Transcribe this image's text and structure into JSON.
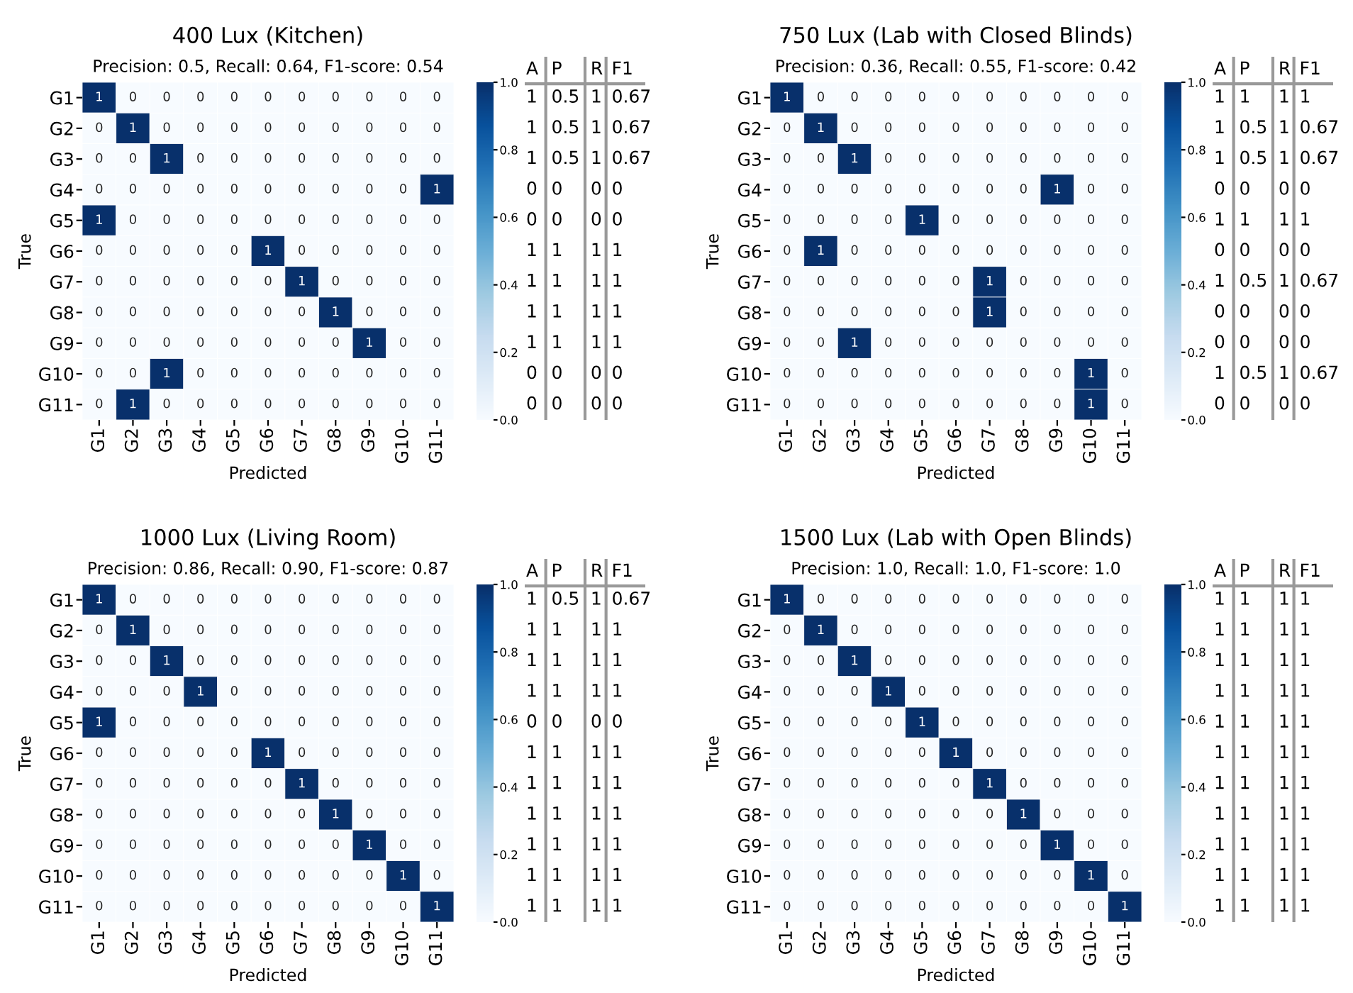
{
  "chart_data": [
    {
      "type": "heatmap",
      "title": "400 Lux (Kitchen)",
      "subtitle": "Precision: 0.5, Recall: 0.64, F1-score: 0.54",
      "xlabel": "Predicted",
      "ylabel": "True",
      "categories": [
        "G1",
        "G2",
        "G3",
        "G4",
        "G5",
        "G6",
        "G7",
        "G8",
        "G9",
        "G10",
        "G11"
      ],
      "y_categories": [
        "G1",
        "G2",
        "G3",
        "G4",
        "G5",
        "G6",
        "G7",
        "G8",
        "G9",
        "G10",
        "G11"
      ],
      "cells": [
        [
          1,
          0,
          0,
          0,
          0,
          0,
          0,
          0,
          0,
          0,
          0
        ],
        [
          0,
          1,
          0,
          0,
          0,
          0,
          0,
          0,
          0,
          0,
          0
        ],
        [
          0,
          0,
          1,
          0,
          0,
          0,
          0,
          0,
          0,
          0,
          0
        ],
        [
          0,
          0,
          0,
          0,
          0,
          0,
          0,
          0,
          0,
          0,
          1
        ],
        [
          1,
          0,
          0,
          0,
          0,
          0,
          0,
          0,
          0,
          0,
          0
        ],
        [
          0,
          0,
          0,
          0,
          0,
          1,
          0,
          0,
          0,
          0,
          0
        ],
        [
          0,
          0,
          0,
          0,
          0,
          0,
          1,
          0,
          0,
          0,
          0
        ],
        [
          0,
          0,
          0,
          0,
          0,
          0,
          0,
          1,
          0,
          0,
          0
        ],
        [
          0,
          0,
          0,
          0,
          0,
          0,
          0,
          0,
          1,
          0,
          0
        ],
        [
          0,
          0,
          1,
          0,
          0,
          0,
          0,
          0,
          0,
          0,
          0
        ],
        [
          0,
          1,
          0,
          0,
          0,
          0,
          0,
          0,
          0,
          0,
          0
        ]
      ],
      "clim": [
        0,
        1
      ],
      "cticks": [
        {
          "value": 0,
          "label": "0.0"
        },
        {
          "value": 0.2,
          "label": "0.2"
        },
        {
          "value": 0.4,
          "label": "0.4"
        },
        {
          "value": 0.6,
          "label": "0.6"
        },
        {
          "value": 0.8,
          "label": "0.8"
        },
        {
          "value": 1,
          "label": "1.0"
        }
      ],
      "data_labels": true
    },
    {
      "type": "other",
      "categories": [
        "A",
        "P",
        "R",
        "F1"
      ],
      "cell_labels": [
        [
          "1",
          "0.5",
          "1",
          "0.67"
        ],
        [
          "1",
          "0.5",
          "1",
          "0.67"
        ],
        [
          "1",
          "0.5",
          "1",
          "0.67"
        ],
        [
          "0",
          "0",
          "0",
          "0"
        ],
        [
          "0",
          "0",
          "0",
          "0"
        ],
        [
          "1",
          "1",
          "1",
          "1"
        ],
        [
          "1",
          "1",
          "1",
          "1"
        ],
        [
          "1",
          "1",
          "1",
          "1"
        ],
        [
          "1",
          "1",
          "1",
          "1"
        ],
        [
          "0",
          "0",
          "0",
          "0"
        ],
        [
          "0",
          "0",
          "0",
          "0"
        ]
      ]
    },
    {
      "type": "heatmap",
      "title": "750 Lux (Lab with Closed Blinds)",
      "subtitle": "Precision: 0.36, Recall: 0.55, F1-score: 0.42",
      "xlabel": "Predicted",
      "ylabel": "True",
      "categories": [
        "G1",
        "G2",
        "G3",
        "G4",
        "G5",
        "G6",
        "G7",
        "G8",
        "G9",
        "G10",
        "G11"
      ],
      "y_categories": [
        "G1",
        "G2",
        "G3",
        "G4",
        "G5",
        "G6",
        "G7",
        "G8",
        "G9",
        "G10",
        "G11"
      ],
      "cells": [
        [
          1,
          0,
          0,
          0,
          0,
          0,
          0,
          0,
          0,
          0,
          0
        ],
        [
          0,
          1,
          0,
          0,
          0,
          0,
          0,
          0,
          0,
          0,
          0
        ],
        [
          0,
          0,
          1,
          0,
          0,
          0,
          0,
          0,
          0,
          0,
          0
        ],
        [
          0,
          0,
          0,
          0,
          0,
          0,
          0,
          0,
          1,
          0,
          0
        ],
        [
          0,
          0,
          0,
          0,
          1,
          0,
          0,
          0,
          0,
          0,
          0
        ],
        [
          0,
          1,
          0,
          0,
          0,
          0,
          0,
          0,
          0,
          0,
          0
        ],
        [
          0,
          0,
          0,
          0,
          0,
          0,
          1,
          0,
          0,
          0,
          0
        ],
        [
          0,
          0,
          0,
          0,
          0,
          0,
          1,
          0,
          0,
          0,
          0
        ],
        [
          0,
          0,
          1,
          0,
          0,
          0,
          0,
          0,
          0,
          0,
          0
        ],
        [
          0,
          0,
          0,
          0,
          0,
          0,
          0,
          0,
          0,
          1,
          0
        ],
        [
          0,
          0,
          0,
          0,
          0,
          0,
          0,
          0,
          0,
          1,
          0
        ]
      ],
      "clim": [
        0,
        1
      ],
      "cticks": [
        {
          "value": 0,
          "label": "0.0"
        },
        {
          "value": 0.2,
          "label": "0.2"
        },
        {
          "value": 0.4,
          "label": "0.4"
        },
        {
          "value": 0.6,
          "label": "0.6"
        },
        {
          "value": 0.8,
          "label": "0.8"
        },
        {
          "value": 1,
          "label": "1.0"
        }
      ],
      "data_labels": true
    },
    {
      "type": "other",
      "categories": [
        "A",
        "P",
        "R",
        "F1"
      ],
      "cell_labels": [
        [
          "1",
          "1",
          "1",
          "1"
        ],
        [
          "1",
          "0.5",
          "1",
          "0.67"
        ],
        [
          "1",
          "0.5",
          "1",
          "0.67"
        ],
        [
          "0",
          "0",
          "0",
          "0"
        ],
        [
          "1",
          "1",
          "1",
          "1"
        ],
        [
          "0",
          "0",
          "0",
          "0"
        ],
        [
          "1",
          "0.5",
          "1",
          "0.67"
        ],
        [
          "0",
          "0",
          "0",
          "0"
        ],
        [
          "0",
          "0",
          "0",
          "0"
        ],
        [
          "1",
          "0.5",
          "1",
          "0.67"
        ],
        [
          "0",
          "0",
          "0",
          "0"
        ]
      ]
    },
    {
      "type": "heatmap",
      "title": "1000 Lux (Living Room)",
      "subtitle": "Precision: 0.86, Recall: 0.90, F1-score: 0.87",
      "xlabel": "Predicted",
      "ylabel": "True",
      "categories": [
        "G1",
        "G2",
        "G3",
        "G4",
        "G5",
        "G6",
        "G7",
        "G8",
        "G9",
        "G10",
        "G11"
      ],
      "y_categories": [
        "G1",
        "G2",
        "G3",
        "G4",
        "G5",
        "G6",
        "G7",
        "G8",
        "G9",
        "G10",
        "G11"
      ],
      "cells": [
        [
          1,
          0,
          0,
          0,
          0,
          0,
          0,
          0,
          0,
          0,
          0
        ],
        [
          0,
          1,
          0,
          0,
          0,
          0,
          0,
          0,
          0,
          0,
          0
        ],
        [
          0,
          0,
          1,
          0,
          0,
          0,
          0,
          0,
          0,
          0,
          0
        ],
        [
          0,
          0,
          0,
          1,
          0,
          0,
          0,
          0,
          0,
          0,
          0
        ],
        [
          1,
          0,
          0,
          0,
          0,
          0,
          0,
          0,
          0,
          0,
          0
        ],
        [
          0,
          0,
          0,
          0,
          0,
          1,
          0,
          0,
          0,
          0,
          0
        ],
        [
          0,
          0,
          0,
          0,
          0,
          0,
          1,
          0,
          0,
          0,
          0
        ],
        [
          0,
          0,
          0,
          0,
          0,
          0,
          0,
          1,
          0,
          0,
          0
        ],
        [
          0,
          0,
          0,
          0,
          0,
          0,
          0,
          0,
          1,
          0,
          0
        ],
        [
          0,
          0,
          0,
          0,
          0,
          0,
          0,
          0,
          0,
          1,
          0
        ],
        [
          0,
          0,
          0,
          0,
          0,
          0,
          0,
          0,
          0,
          0,
          1
        ]
      ],
      "clim": [
        0,
        1
      ],
      "cticks": [
        {
          "value": 0,
          "label": "0.0"
        },
        {
          "value": 0.2,
          "label": "0.2"
        },
        {
          "value": 0.4,
          "label": "0.4"
        },
        {
          "value": 0.6,
          "label": "0.6"
        },
        {
          "value": 0.8,
          "label": "0.8"
        },
        {
          "value": 1,
          "label": "1.0"
        }
      ],
      "data_labels": true
    },
    {
      "type": "other",
      "categories": [
        "A",
        "P",
        "R",
        "F1"
      ],
      "cell_labels": [
        [
          "1",
          "0.5",
          "1",
          "0.67"
        ],
        [
          "1",
          "1",
          "1",
          "1"
        ],
        [
          "1",
          "1",
          "1",
          "1"
        ],
        [
          "1",
          "1",
          "1",
          "1"
        ],
        [
          "0",
          "0",
          "0",
          "0"
        ],
        [
          "1",
          "1",
          "1",
          "1"
        ],
        [
          "1",
          "1",
          "1",
          "1"
        ],
        [
          "1",
          "1",
          "1",
          "1"
        ],
        [
          "1",
          "1",
          "1",
          "1"
        ],
        [
          "1",
          "1",
          "1",
          "1"
        ],
        [
          "1",
          "1",
          "1",
          "1"
        ]
      ]
    },
    {
      "type": "heatmap",
      "title": "1500 Lux (Lab with Open Blinds)",
      "subtitle": "Precision: 1.0, Recall: 1.0, F1-score: 1.0",
      "xlabel": "Predicted",
      "ylabel": "True",
      "categories": [
        "G1",
        "G2",
        "G3",
        "G4",
        "G5",
        "G6",
        "G7",
        "G8",
        "G9",
        "G10",
        "G11"
      ],
      "y_categories": [
        "G1",
        "G2",
        "G3",
        "G4",
        "G5",
        "G6",
        "G7",
        "G8",
        "G9",
        "G10",
        "G11"
      ],
      "cells": [
        [
          1,
          0,
          0,
          0,
          0,
          0,
          0,
          0,
          0,
          0,
          0
        ],
        [
          0,
          1,
          0,
          0,
          0,
          0,
          0,
          0,
          0,
          0,
          0
        ],
        [
          0,
          0,
          1,
          0,
          0,
          0,
          0,
          0,
          0,
          0,
          0
        ],
        [
          0,
          0,
          0,
          1,
          0,
          0,
          0,
          0,
          0,
          0,
          0
        ],
        [
          0,
          0,
          0,
          0,
          1,
          0,
          0,
          0,
          0,
          0,
          0
        ],
        [
          0,
          0,
          0,
          0,
          0,
          1,
          0,
          0,
          0,
          0,
          0
        ],
        [
          0,
          0,
          0,
          0,
          0,
          0,
          1,
          0,
          0,
          0,
          0
        ],
        [
          0,
          0,
          0,
          0,
          0,
          0,
          0,
          1,
          0,
          0,
          0
        ],
        [
          0,
          0,
          0,
          0,
          0,
          0,
          0,
          0,
          1,
          0,
          0
        ],
        [
          0,
          0,
          0,
          0,
          0,
          0,
          0,
          0,
          0,
          1,
          0
        ],
        [
          0,
          0,
          0,
          0,
          0,
          0,
          0,
          0,
          0,
          0,
          1
        ]
      ],
      "clim": [
        0,
        1
      ],
      "cticks": [
        {
          "value": 0,
          "label": "0.0"
        },
        {
          "value": 0.2,
          "label": "0.2"
        },
        {
          "value": 0.4,
          "label": "0.4"
        },
        {
          "value": 0.6,
          "label": "0.6"
        },
        {
          "value": 0.8,
          "label": "0.8"
        },
        {
          "value": 1,
          "label": "1.0"
        }
      ],
      "data_labels": true
    },
    {
      "type": "other",
      "categories": [
        "A",
        "P",
        "R",
        "F1"
      ],
      "cell_labels": [
        [
          "1",
          "1",
          "1",
          "1"
        ],
        [
          "1",
          "1",
          "1",
          "1"
        ],
        [
          "1",
          "1",
          "1",
          "1"
        ],
        [
          "1",
          "1",
          "1",
          "1"
        ],
        [
          "1",
          "1",
          "1",
          "1"
        ],
        [
          "1",
          "1",
          "1",
          "1"
        ],
        [
          "1",
          "1",
          "1",
          "1"
        ],
        [
          "1",
          "1",
          "1",
          "1"
        ],
        [
          "1",
          "1",
          "1",
          "1"
        ],
        [
          "1",
          "1",
          "1",
          "1"
        ],
        [
          "1",
          "1",
          "1",
          "1"
        ]
      ]
    }
  ]
}
